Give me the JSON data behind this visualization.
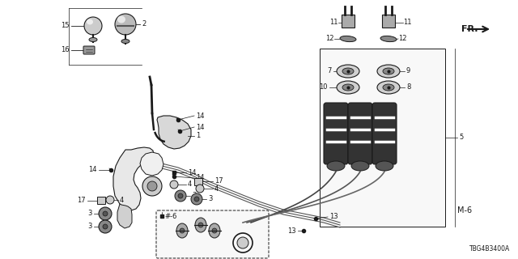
{
  "bg_color": "#ffffff",
  "fig_width": 6.4,
  "fig_height": 3.2,
  "dpi": 100,
  "part_number": "TBG4B3400A",
  "dark": "#1a1a1a",
  "gray_light": "#dddddd",
  "gray_mid": "#aaaaaa",
  "gray_dark": "#666666",
  "lw_thin": 0.6,
  "lw_med": 1.0,
  "lw_thick": 1.6,
  "fs_label": 6.0,
  "fs_small": 5.5
}
